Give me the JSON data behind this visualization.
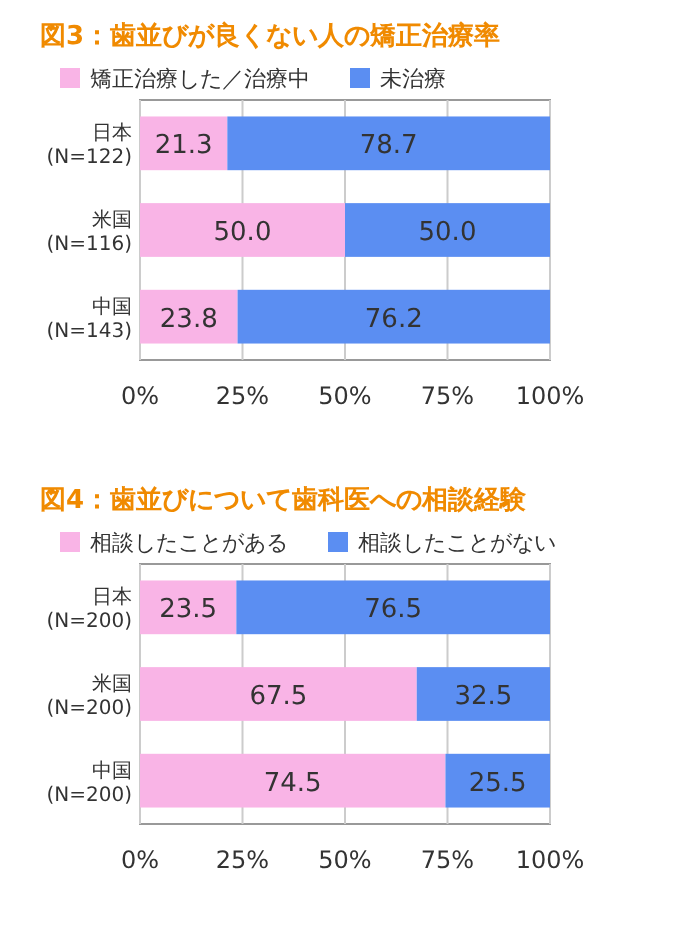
{
  "chart_data": [
    {
      "type": "bar",
      "orientation": "horizontal",
      "stacked": true,
      "title": "図3：歯並びが良くない人の矯正治療率",
      "categories": [
        "日本\n(N=122)",
        "米国\n(N=116)",
        "中国\n(N=143)"
      ],
      "series": [
        {
          "name": "矯正治療した／治療中",
          "color": "#f9b4e6",
          "values": [
            21.3,
            50.0,
            23.8
          ],
          "value_labels": [
            "21.3",
            "50.0",
            "23.8"
          ]
        },
        {
          "name": "未治療",
          "color": "#5b8ef2",
          "values": [
            78.7,
            50.0,
            76.2
          ],
          "value_labels": [
            "78.7",
            "50.0",
            "76.2"
          ]
        }
      ],
      "xlim": [
        0,
        100
      ],
      "xticks": [
        {
          "value": 0,
          "label": "0%"
        },
        {
          "value": 25,
          "label": "25%"
        },
        {
          "value": 50,
          "label": "50%"
        },
        {
          "value": 75,
          "label": "75%"
        },
        {
          "value": 100,
          "label": "100%"
        }
      ],
      "grid": "x",
      "legend": "top"
    },
    {
      "type": "bar",
      "orientation": "horizontal",
      "stacked": true,
      "title": "図4：歯並びについて歯科医への相談経験",
      "categories": [
        "日本\n(N=200)",
        "米国\n(N=200)",
        "中国\n(N=200)"
      ],
      "series": [
        {
          "name": "相談したことがある",
          "color": "#f9b4e6",
          "values": [
            23.5,
            67.5,
            74.5
          ],
          "value_labels": [
            "23.5",
            "67.5",
            "74.5"
          ]
        },
        {
          "name": "相談したことがない",
          "color": "#5b8ef2",
          "values": [
            76.5,
            32.5,
            25.5
          ],
          "value_labels": [
            "76.5",
            "32.5",
            "25.5"
          ]
        }
      ],
      "xlim": [
        0,
        100
      ],
      "xticks": [
        {
          "value": 0,
          "label": "0%"
        },
        {
          "value": 25,
          "label": "25%"
        },
        {
          "value": 50,
          "label": "50%"
        },
        {
          "value": 75,
          "label": "75%"
        },
        {
          "value": 100,
          "label": "100%"
        }
      ],
      "grid": "x",
      "legend": "top"
    }
  ]
}
